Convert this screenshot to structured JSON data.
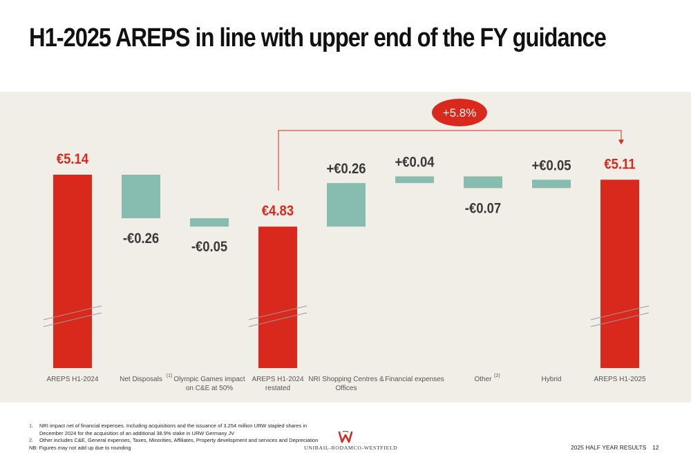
{
  "page": {
    "title": "H1-2025 AREPS in line with upper end of the FY guidance"
  },
  "colors": {
    "total_bar": "#d9291c",
    "delta_bar": "#86bdb0",
    "panel_bg": "#f1ede7",
    "badge": "#d9291c",
    "total_label": "#d9291c",
    "delta_label": "#3a3a3a"
  },
  "chart_data": {
    "type": "bar",
    "subtype": "waterfall",
    "categories": [
      "AREPS H1-2024",
      "Net Disposals",
      "Olympic Games impact on C&E at 50%",
      "AREPS H1-2024 restated",
      "NRI Shopping Centres & Offices",
      "Financial expenses",
      "Other",
      "Hybrid",
      "AREPS H1-2025"
    ],
    "category_lines": [
      [
        "AREPS H1-2024"
      ],
      [
        "Net Disposals"
      ],
      [
        "Olympic Games impact",
        "on C&E at 50%"
      ],
      [
        "AREPS H1-2024",
        "restated"
      ],
      [
        "NRI Shopping Centres &",
        "Offices"
      ],
      [
        "Financial expenses"
      ],
      [
        "Other"
      ],
      [
        "Hybrid"
      ],
      [
        "AREPS H1-2025"
      ]
    ],
    "category_footnotes": [
      "",
      "(1)",
      "",
      "",
      "",
      "",
      "(2)",
      "",
      ""
    ],
    "kinds": [
      "total",
      "delta",
      "delta",
      "total",
      "delta",
      "delta",
      "delta",
      "delta",
      "total"
    ],
    "values": [
      5.14,
      -0.26,
      -0.05,
      4.83,
      0.26,
      0.04,
      -0.07,
      0.05,
      5.11
    ],
    "data_labels": [
      "€5.14",
      "-€0.26",
      "-€0.05",
      "€4.83",
      "+€0.26",
      "+€0.04",
      "-€0.07",
      "+€0.05",
      "€5.11"
    ],
    "axis_break": true,
    "legend": "none",
    "grid": false,
    "annotation": {
      "text": "+5.8%",
      "from_category": "AREPS H1-2024 restated",
      "to_category": "AREPS H1-2025"
    }
  },
  "footnotes": [
    {
      "num": "1.",
      "text": "NRI impact net of financial expenses. Including acquisitions and the issuance of 3.254 million URW stapled shares in December 2024 for the acquisition of an additional 38.9% stake in URW Germany JV"
    },
    {
      "num": "2.",
      "text": "Other includes C&E, General expenses, Taxes, Minorities, Affiliates, Property development and services and Depreciation"
    }
  ],
  "nb_note": "NB: Figures may not add up due to rounding",
  "logo": {
    "text": "UNIBAIL-RODAMCO-WESTFIELD",
    "icon": "w-logo-icon"
  },
  "footer": {
    "label": "2025 HALF YEAR RESULTS",
    "page_number": "12"
  }
}
